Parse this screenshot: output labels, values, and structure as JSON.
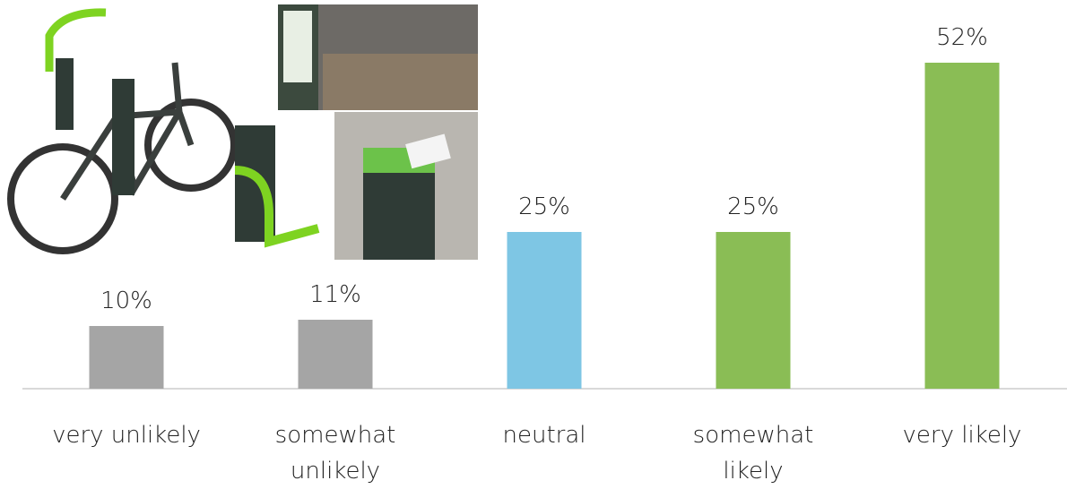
{
  "chart_data": {
    "type": "bar",
    "categories": [
      "very unlikely",
      "somewhat unlikely",
      "neutral",
      "somewhat likely",
      "very likely"
    ],
    "values": [
      10,
      11,
      25,
      25,
      52
    ],
    "value_labels": [
      "10%",
      "11%",
      "25%",
      "25%",
      "52%"
    ],
    "colors": [
      "#a5a5a5",
      "#a5a5a5",
      "#7ec6e4",
      "#8abd55",
      "#8abd55"
    ]
  }
}
